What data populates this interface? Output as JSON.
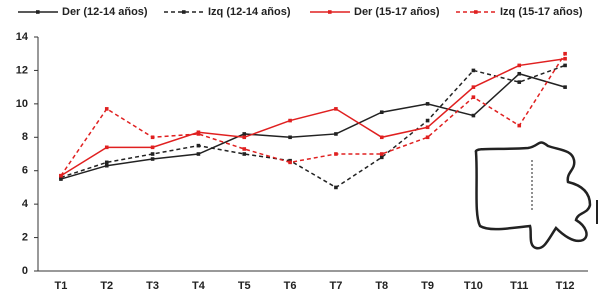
{
  "chart_data": {
    "type": "line",
    "categories": [
      "T1",
      "T2",
      "T3",
      "T4",
      "T5",
      "T6",
      "T7",
      "T8",
      "T9",
      "T10",
      "T11",
      "T12"
    ],
    "series": [
      {
        "name": "Der (12-14 años)",
        "color": "#222222",
        "line_style": "solid",
        "values": [
          5.5,
          6.3,
          6.7,
          7.0,
          8.2,
          8.0,
          8.2,
          9.5,
          10.0,
          9.3,
          11.8,
          11.0
        ]
      },
      {
        "name": "Izq (12-14 años)",
        "color": "#222222",
        "line_style": "dashed",
        "values": [
          5.6,
          6.5,
          7.0,
          7.5,
          7.0,
          6.6,
          5.0,
          6.8,
          9.0,
          12.0,
          11.3,
          12.3
        ]
      },
      {
        "name": "Der (15-17 años)",
        "color": "#e02020",
        "line_style": "solid",
        "values": [
          5.7,
          7.4,
          7.4,
          8.3,
          8.0,
          9.0,
          9.7,
          8.0,
          8.6,
          11.0,
          12.3,
          12.7
        ]
      },
      {
        "name": "Izq (15-17 años)",
        "color": "#e02020",
        "line_style": "dashed",
        "values": [
          5.7,
          9.7,
          8.0,
          8.2,
          7.3,
          6.5,
          7.0,
          7.0,
          8.0,
          10.4,
          8.7,
          13.0
        ]
      }
    ],
    "ylim": [
      0,
      14
    ],
    "yticks": [
      0,
      2,
      4,
      6,
      8,
      10,
      12,
      14
    ],
    "grid": false,
    "legend": "top"
  }
}
